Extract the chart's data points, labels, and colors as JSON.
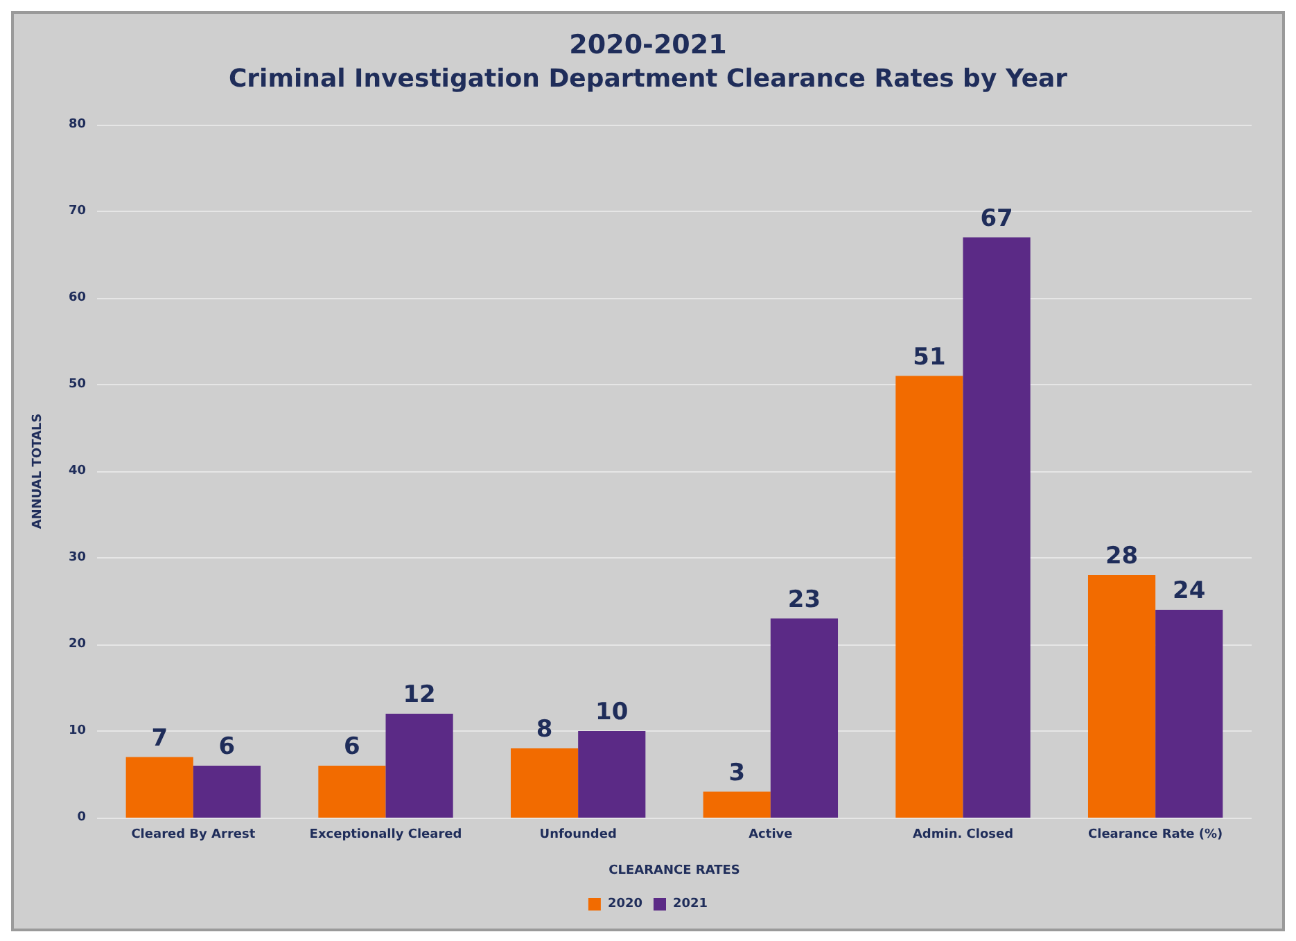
{
  "chart_data": {
    "type": "bar",
    "title": "2020-2021",
    "subtitle": "Criminal Investigation Department Clearance Rates by Year",
    "xlabel": "CLEARANCE RATES",
    "ylabel": "ANNUAL TOTALS",
    "categories": [
      "Cleared By Arrest",
      "Exceptionally Cleared",
      "Unfounded",
      "Active",
      "Admin. Closed",
      "Clearance Rate (%)"
    ],
    "series": [
      {
        "name": "2020",
        "color": "#f26b00",
        "values": [
          7,
          6,
          8,
          3,
          51,
          28
        ]
      },
      {
        "name": "2021",
        "color": "#5b2a86",
        "values": [
          6,
          12,
          10,
          23,
          67,
          24
        ]
      }
    ],
    "ylim": [
      0,
      80
    ],
    "yticks": [
      0,
      10,
      20,
      30,
      40,
      50,
      60,
      70,
      80
    ],
    "grid": "y",
    "legend": "bottom",
    "data_labels": true
  }
}
